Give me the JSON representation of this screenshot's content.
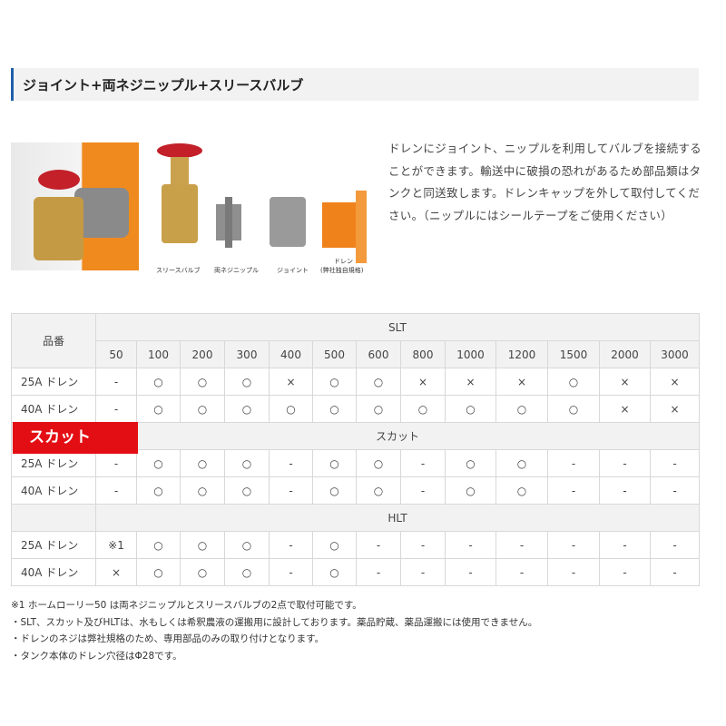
{
  "header": {
    "title": "ジョイント+両ネジニップル+スリースバルブ",
    "accent_color": "#1f5fa8"
  },
  "diagram": {
    "labels": [
      "スリースバルブ",
      "両ネジニップル",
      "ジョイント",
      "ドレン",
      "(弊社独自規格)"
    ]
  },
  "description": "ドレンにジョイント、ニップルを利用してバルブを接続することができます。輸送中に破損の恐れがあるため部品類はタンクと同送致します。ドレンキャップを外して取付してください。（ニップルにはシールテープをご使用ください）",
  "table": {
    "corner_label": "品番",
    "sizes": [
      "50",
      "100",
      "200",
      "300",
      "400",
      "500",
      "600",
      "800",
      "1000",
      "1200",
      "1500",
      "2000",
      "3000"
    ],
    "groups": [
      {
        "name": "SLT",
        "rows": [
          {
            "label": "25A ドレン",
            "cells": [
              "-",
              "○",
              "○",
              "○",
              "×",
              "○",
              "○",
              "×",
              "×",
              "×",
              "○",
              "×",
              "×"
            ]
          },
          {
            "label": "40A ドレン",
            "cells": [
              "-",
              "○",
              "○",
              "○",
              "○",
              "○",
              "○",
              "○",
              "○",
              "○",
              "○",
              "×",
              "×"
            ]
          }
        ]
      },
      {
        "name": "スカット",
        "rows": [
          {
            "label": "25A ドレン",
            "cells": [
              "-",
              "○",
              "○",
              "○",
              "-",
              "○",
              "○",
              "-",
              "○",
              "○",
              "-",
              "-",
              "-"
            ]
          },
          {
            "label": "40A ドレン",
            "cells": [
              "-",
              "○",
              "○",
              "○",
              "-",
              "○",
              "○",
              "-",
              "○",
              "○",
              "-",
              "-",
              "-"
            ]
          }
        ]
      },
      {
        "name": "HLT",
        "rows": [
          {
            "label": "25A ドレン",
            "cells": [
              "※1",
              "○",
              "○",
              "○",
              "-",
              "○",
              "-",
              "-",
              "-",
              "-",
              "-",
              "-",
              "-"
            ]
          },
          {
            "label": "40A ドレン",
            "cells": [
              "×",
              "○",
              "○",
              "○",
              "-",
              "○",
              "-",
              "-",
              "-",
              "-",
              "-",
              "-",
              "-"
            ]
          }
        ]
      }
    ]
  },
  "red_tag": {
    "label": "スカット",
    "color": "#e30e14"
  },
  "notes": [
    "※1 ホームローリー50 は両ネジニップルとスリースバルブの2点で取付可能です。",
    "・SLT、スカット及びHLTは、水もしくは希釈農液の運搬用に設計しております。薬品貯蔵、薬品運搬には使用できません。",
    "・ドレンのネジは弊社規格のため、専用部品のみの取り付けとなります。",
    "・タンク本体のドレン穴径はΦ28です。"
  ]
}
